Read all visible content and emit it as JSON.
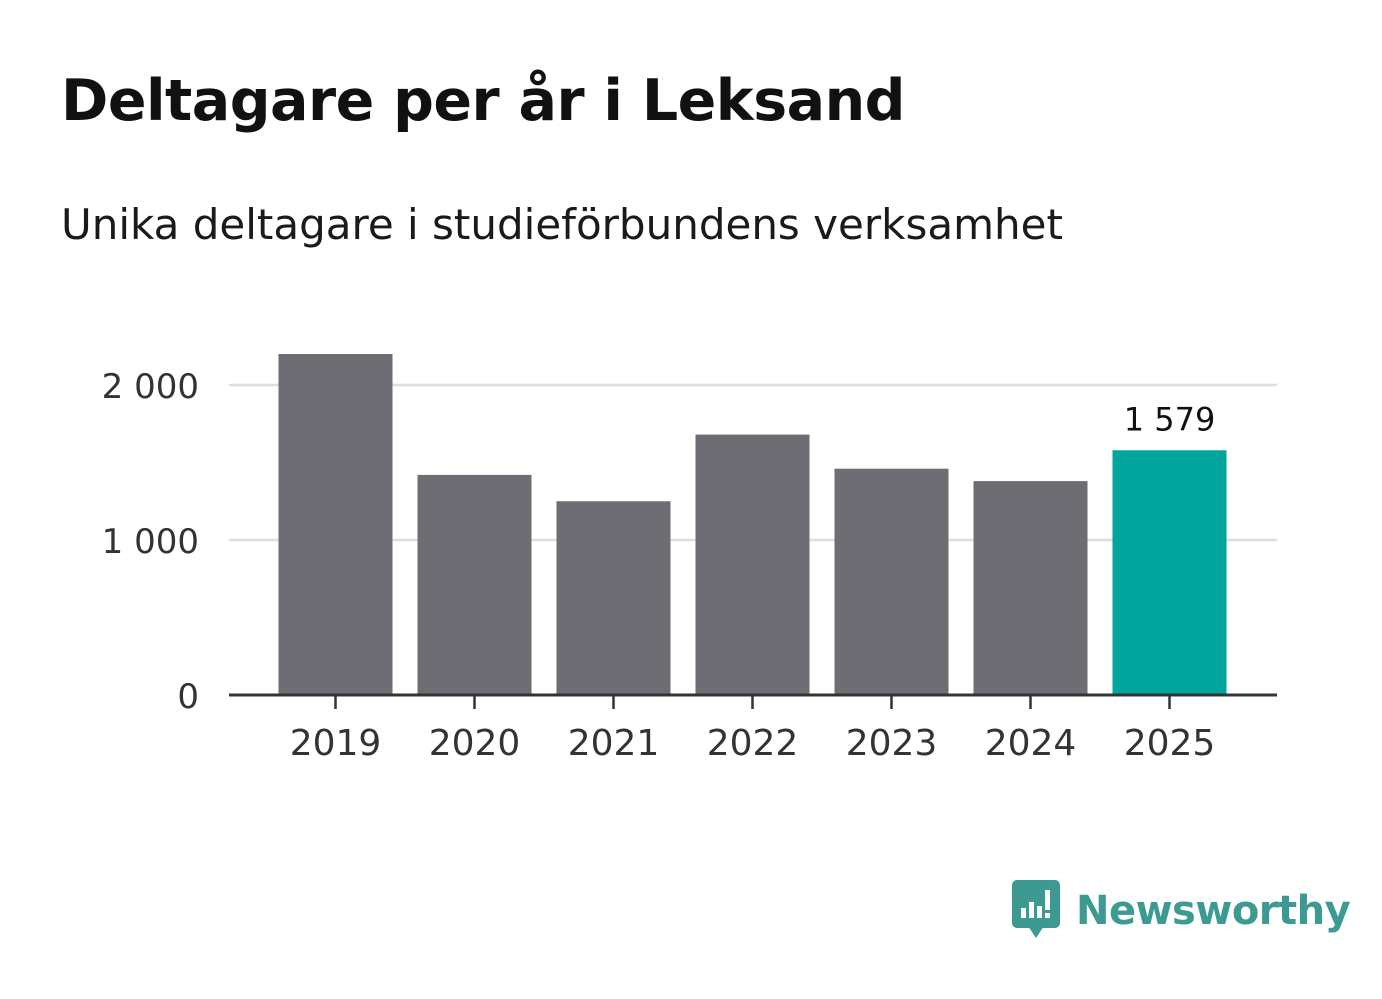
{
  "title": "Deltagare per år i Leksand",
  "subtitle": "Unika deltagare i studieförbundens verksamhet",
  "chart_data": {
    "type": "bar",
    "categories": [
      "2019",
      "2020",
      "2021",
      "2022",
      "2023",
      "2024",
      "2025"
    ],
    "values": [
      2200,
      1420,
      1250,
      1680,
      1460,
      1380,
      1579
    ],
    "highlight_index": 6,
    "data_labels": [
      {
        "index": 6,
        "text": "1 579"
      }
    ],
    "y_ticks": [
      0,
      1000,
      2000
    ],
    "y_tick_labels": [
      "0",
      "1 000",
      "2 000"
    ],
    "ylim": [
      0,
      2200
    ],
    "xlabel": "",
    "ylabel": "",
    "grid": true,
    "colors": {
      "bar": "#6e6d73",
      "highlight": "#00a59b",
      "grid": "#dddddd",
      "axis": "#333333",
      "tick_text": "#333333",
      "label_text": "#111111"
    }
  },
  "brand": {
    "name": "Newsworthy",
    "icon": "newsworthy-logo-icon",
    "color": "#3d9a92"
  }
}
